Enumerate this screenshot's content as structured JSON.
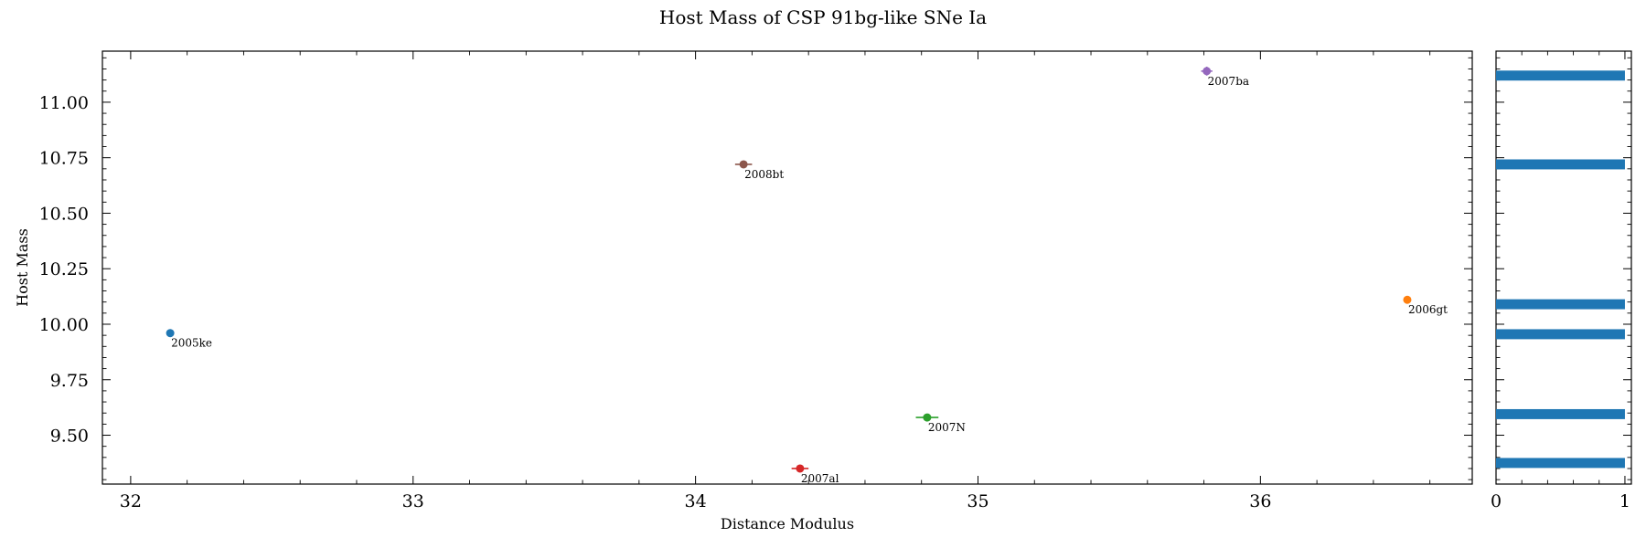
{
  "chart_data": {
    "type": "scatter",
    "title": "Host Mass of CSP 91bg-like SNe Ia",
    "xlabel": "Distance Modulus",
    "ylabel": "Host Mass",
    "xlim": [
      31.9,
      36.75
    ],
    "ylim": [
      9.28,
      11.23
    ],
    "xticks": [
      32,
      33,
      34,
      35,
      36
    ],
    "yticks": [
      9.5,
      9.75,
      10.0,
      10.25,
      10.5,
      10.75,
      11.0
    ],
    "grid": false,
    "points": [
      {
        "label": "2005ke",
        "x": 32.14,
        "y": 9.96,
        "xerr": 0.0,
        "yerr": 0.0,
        "color": "#1f77b4"
      },
      {
        "label": "2006gt",
        "x": 36.52,
        "y": 10.11,
        "xerr": 0.0,
        "yerr": 0.0,
        "color": "#ff7f0e"
      },
      {
        "label": "2007N",
        "x": 34.82,
        "y": 9.58,
        "xerr": 0.04,
        "yerr": 0.01,
        "color": "#2ca02c"
      },
      {
        "label": "2007al",
        "x": 34.37,
        "y": 9.35,
        "xerr": 0.03,
        "yerr": 0.01,
        "color": "#d62728"
      },
      {
        "label": "2007ba",
        "x": 35.81,
        "y": 11.14,
        "xerr": 0.02,
        "yerr": 0.02,
        "color": "#9467bd"
      },
      {
        "label": "2008bt",
        "x": 34.17,
        "y": 10.72,
        "xerr": 0.03,
        "yerr": 0.01,
        "color": "#8c564b"
      }
    ],
    "side_histogram": {
      "type": "bar",
      "orientation": "horizontal",
      "xlim": [
        0,
        1.05
      ],
      "xticks": [
        0,
        1
      ],
      "bar_color": "#1f77b4",
      "bars": [
        {
          "y": 11.12,
          "count": 1
        },
        {
          "y": 10.72,
          "count": 1
        },
        {
          "y": 10.09,
          "count": 1
        },
        {
          "y": 9.955,
          "count": 1
        },
        {
          "y": 9.595,
          "count": 1
        },
        {
          "y": 9.375,
          "count": 1
        }
      ],
      "bar_height": 0.045
    }
  }
}
